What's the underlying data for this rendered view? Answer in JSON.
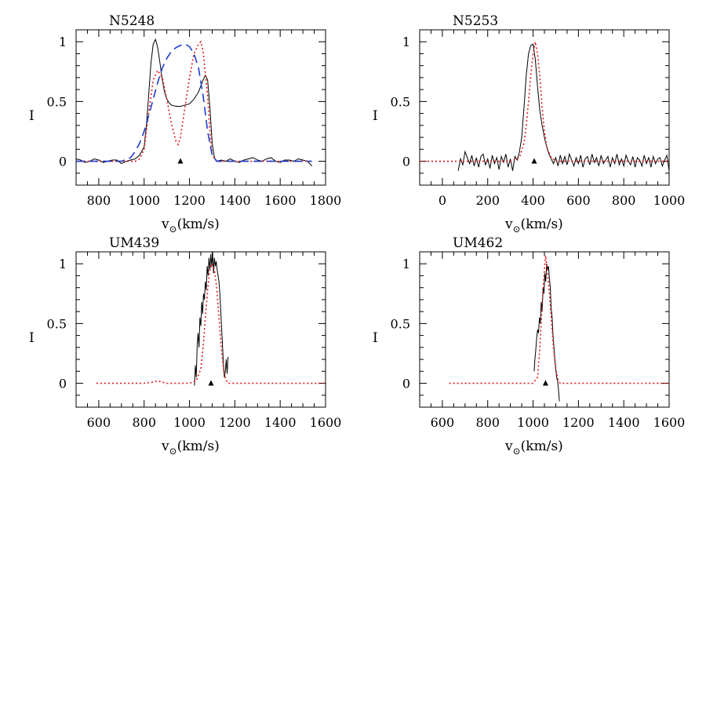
{
  "chart_data": [
    {
      "type": "line",
      "title": "N5248",
      "xlabel": "v",
      "xlabel_sub": "⊙",
      "xlabel_unit": "(km/s)",
      "ylabel": "I",
      "xlim": [
        700,
        1800
      ],
      "ylim": [
        -0.2,
        1.1
      ],
      "xticks": [
        800,
        1000,
        1200,
        1400,
        1600,
        1800
      ],
      "yticks": [
        0,
        0.5,
        1
      ],
      "marker": {
        "x": 1160,
        "y": 0
      },
      "series": [
        {
          "color": "#000000",
          "style": "solid",
          "x": [
            700,
            720,
            740,
            760,
            780,
            800,
            820,
            840,
            860,
            880,
            900,
            920,
            940,
            960,
            980,
            1000,
            1010,
            1020,
            1030,
            1040,
            1050,
            1060,
            1070,
            1080,
            1090,
            1100,
            1110,
            1120,
            1140,
            1160,
            1180,
            1200,
            1220,
            1240,
            1260,
            1270,
            1280,
            1290,
            1300,
            1310,
            1320,
            1340,
            1360,
            1380,
            1400,
            1420,
            1440,
            1460,
            1480,
            1500,
            1520,
            1540,
            1560,
            1580,
            1600,
            1620,
            1640,
            1660,
            1680,
            1700,
            1720,
            1740
          ],
          "y": [
            0.02,
            0.01,
            -0.01,
            0.0,
            0.02,
            0.01,
            -0.01,
            0.0,
            0.01,
            0.01,
            -0.02,
            0.0,
            0.01,
            0.02,
            0.05,
            0.12,
            0.3,
            0.55,
            0.82,
            0.98,
            1.02,
            0.95,
            0.82,
            0.68,
            0.58,
            0.52,
            0.49,
            0.47,
            0.46,
            0.46,
            0.47,
            0.48,
            0.52,
            0.58,
            0.68,
            0.72,
            0.68,
            0.45,
            0.15,
            0.03,
            0.0,
            0.01,
            0.0,
            0.02,
            0.0,
            -0.01,
            0.01,
            0.02,
            0.03,
            0.01,
            0.0,
            0.02,
            0.03,
            0.0,
            -0.01,
            0.01,
            0.01,
            0.0,
            0.02,
            0.01,
            0.0,
            -0.04
          ]
        },
        {
          "color": "#e31a1c",
          "style": "dotted",
          "x": [
            700,
            800,
            900,
            960,
            980,
            1000,
            1020,
            1040,
            1060,
            1080,
            1100,
            1120,
            1140,
            1150,
            1160,
            1180,
            1200,
            1220,
            1240,
            1250,
            1260,
            1280,
            1290,
            1300,
            1320,
            1400,
            1500,
            1600,
            1700,
            1740
          ],
          "y": [
            0,
            0,
            0,
            0,
            0.02,
            0.1,
            0.4,
            0.68,
            0.76,
            0.7,
            0.52,
            0.32,
            0.17,
            0.14,
            0.2,
            0.45,
            0.7,
            0.9,
            0.98,
            1.0,
            0.92,
            0.55,
            0.25,
            0.05,
            0,
            0,
            0,
            0,
            0,
            0
          ]
        },
        {
          "color": "#1f3fd0",
          "style": "dashed",
          "x": [
            700,
            800,
            900,
            940,
            960,
            980,
            1000,
            1020,
            1040,
            1060,
            1080,
            1100,
            1120,
            1140,
            1160,
            1180,
            1200,
            1220,
            1240,
            1260,
            1280,
            1300,
            1320,
            1400,
            1500,
            1600,
            1700,
            1740
          ],
          "y": [
            0,
            0,
            0,
            0.03,
            0.08,
            0.15,
            0.25,
            0.38,
            0.52,
            0.66,
            0.78,
            0.86,
            0.92,
            0.95,
            0.97,
            0.98,
            0.96,
            0.9,
            0.78,
            0.55,
            0.25,
            0.05,
            0,
            0,
            0,
            0,
            0,
            0
          ]
        }
      ]
    },
    {
      "type": "line",
      "title": "N5253",
      "xlabel": "v",
      "xlabel_sub": "⊙",
      "xlabel_unit": "(km/s)",
      "ylabel": "I",
      "xlim": [
        -100,
        1000
      ],
      "ylim": [
        -0.2,
        1.1
      ],
      "xticks": [
        0,
        200,
        400,
        600,
        800,
        1000
      ],
      "yticks": [
        0,
        0.5,
        1
      ],
      "marker": {
        "x": 405,
        "y": 0
      },
      "series": [
        {
          "color": "#000000",
          "style": "solid",
          "x": [
            70,
            80,
            90,
            100,
            110,
            120,
            130,
            140,
            150,
            160,
            170,
            180,
            190,
            200,
            210,
            220,
            230,
            240,
            250,
            260,
            270,
            280,
            290,
            300,
            310,
            320,
            330,
            340,
            350,
            360,
            370,
            380,
            390,
            400,
            410,
            420,
            430,
            440,
            450,
            460,
            470,
            480,
            490,
            500,
            510,
            520,
            530,
            540,
            550,
            560,
            570,
            580,
            590,
            600,
            610,
            620,
            630,
            640,
            650,
            660,
            670,
            680,
            690,
            700,
            710,
            720,
            730,
            740,
            750,
            760,
            770,
            780,
            790,
            800,
            810,
            820,
            830,
            840,
            850,
            860,
            870,
            880,
            890,
            900,
            910,
            920,
            930,
            940,
            950,
            960,
            970,
            980,
            990,
            1000
          ],
          "y": [
            -0.08,
            0.02,
            -0.03,
            0.08,
            0.03,
            -0.02,
            0.05,
            -0.04,
            0.03,
            -0.05,
            0.04,
            0.06,
            -0.03,
            0.02,
            -0.06,
            0.05,
            -0.02,
            0.03,
            -0.07,
            0.04,
            -0.01,
            0.06,
            -0.05,
            0.02,
            -0.08,
            0.04,
            0.01,
            0.08,
            0.2,
            0.45,
            0.72,
            0.9,
            0.97,
            0.98,
            0.85,
            0.62,
            0.42,
            0.3,
            0.2,
            0.12,
            0.06,
            0.02,
            -0.02,
            0.03,
            -0.04,
            0.05,
            -0.02,
            0.04,
            -0.03,
            0.06,
            0.01,
            -0.04,
            0.03,
            -0.02,
            0.05,
            -0.05,
            0.02,
            0.04,
            -0.03,
            0.06,
            -0.01,
            0.03,
            -0.04,
            0.05,
            -0.02,
            0.01,
            0.04,
            -0.05,
            0.03,
            -0.02,
            0.06,
            -0.03,
            0.02,
            -0.04,
            0.05,
            0.0,
            -0.03,
            0.04,
            -0.05,
            0.03,
            0.01,
            -0.04,
            0.05,
            -0.02,
            0.03,
            -0.05,
            0.04,
            -0.02,
            0.02,
            0.03,
            -0.04,
            0.01,
            0.05,
            -0.08
          ]
        },
        {
          "color": "#e31a1c",
          "style": "dotted",
          "x": [
            -100,
            0,
            100,
            200,
            300,
            340,
            360,
            370,
            380,
            390,
            400,
            410,
            420,
            430,
            440,
            450,
            460,
            480,
            500,
            600,
            700,
            800,
            900,
            1000
          ],
          "y": [
            0,
            0,
            0,
            0,
            0,
            0.03,
            0.15,
            0.3,
            0.5,
            0.72,
            0.9,
            1.0,
            0.9,
            0.7,
            0.45,
            0.25,
            0.12,
            0.03,
            0,
            0,
            0,
            0,
            0,
            0
          ]
        }
      ]
    },
    {
      "type": "line",
      "title": "UM439",
      "xlabel": "v",
      "xlabel_sub": "⊙",
      "xlabel_unit": "(km/s)",
      "ylabel": "I",
      "xlim": [
        500,
        1600
      ],
      "ylim": [
        -0.2,
        1.1
      ],
      "xticks": [
        600,
        800,
        1000,
        1200,
        1400,
        1600
      ],
      "yticks": [
        0,
        0.5,
        1
      ],
      "marker": {
        "x": 1095,
        "y": 0
      },
      "series": [
        {
          "color": "#000000",
          "style": "solid",
          "x": [
            1022,
            1026,
            1030,
            1034,
            1038,
            1042,
            1046,
            1050,
            1054,
            1058,
            1062,
            1066,
            1070,
            1074,
            1078,
            1082,
            1086,
            1090,
            1094,
            1098,
            1102,
            1106,
            1110,
            1114,
            1118,
            1122,
            1126,
            1130,
            1134,
            1138,
            1142,
            1146,
            1150,
            1154,
            1158,
            1162,
            1166,
            1170
          ],
          "y": [
            -0.02,
            0.15,
            0.05,
            0.32,
            0.42,
            0.3,
            0.55,
            0.48,
            0.68,
            0.58,
            0.75,
            0.7,
            0.85,
            0.78,
            0.98,
            0.9,
            1.05,
            0.95,
            1.08,
            0.98,
            1.1,
            0.92,
            1.05,
            0.98,
            1.02,
            0.95,
            0.9,
            0.85,
            0.75,
            0.6,
            0.45,
            0.3,
            0.15,
            0.05,
            0.1,
            0.2,
            0.08,
            0.22
          ]
        },
        {
          "color": "#e31a1c",
          "style": "dotted",
          "x": [
            590,
            700,
            800,
            840,
            860,
            880,
            900,
            1000,
            1030,
            1050,
            1060,
            1070,
            1080,
            1090,
            1100,
            1110,
            1120,
            1130,
            1140,
            1150,
            1160,
            1170,
            1200,
            1300,
            1400,
            1500,
            1600
          ],
          "y": [
            0,
            0,
            0,
            0.01,
            0.02,
            0.01,
            0,
            0,
            0.02,
            0.12,
            0.3,
            0.55,
            0.78,
            0.95,
            1.0,
            0.95,
            0.8,
            0.55,
            0.3,
            0.12,
            0.03,
            0,
            0,
            0,
            0,
            0,
            0
          ]
        }
      ]
    },
    {
      "type": "line",
      "title": "UM462",
      "xlabel": "v",
      "xlabel_sub": "⊙",
      "xlabel_unit": "(km/s)",
      "ylabel": "I",
      "xlim": [
        500,
        1600
      ],
      "ylim": [
        -0.2,
        1.1
      ],
      "xticks": [
        600,
        800,
        1000,
        1200,
        1400,
        1600
      ],
      "yticks": [
        0,
        0.5,
        1
      ],
      "marker": {
        "x": 1055,
        "y": 0
      },
      "series": [
        {
          "color": "#000000",
          "style": "solid",
          "x": [
            1005,
            1008,
            1012,
            1016,
            1020,
            1024,
            1028,
            1032,
            1036,
            1040,
            1044,
            1048,
            1052,
            1056,
            1060,
            1064,
            1068,
            1072,
            1076,
            1080,
            1084,
            1088,
            1092,
            1096,
            1100,
            1104,
            1108,
            1112,
            1116
          ],
          "y": [
            0.1,
            0.2,
            0.28,
            0.38,
            0.45,
            0.42,
            0.55,
            0.5,
            0.68,
            0.6,
            0.8,
            0.75,
            0.92,
            0.85,
            1.0,
            0.95,
            0.98,
            0.88,
            0.8,
            0.62,
            0.55,
            0.4,
            0.3,
            0.2,
            0.12,
            0.05,
            0.02,
            -0.05,
            -0.15
          ]
        },
        {
          "color": "#e31a1c",
          "style": "dotted",
          "x": [
            630,
            700,
            800,
            900,
            1000,
            1020,
            1030,
            1040,
            1050,
            1055,
            1060,
            1070,
            1080,
            1090,
            1100,
            1110,
            1120,
            1130,
            1200,
            1300,
            1400,
            1500,
            1600
          ],
          "y": [
            0,
            0,
            0,
            0,
            0,
            0.05,
            0.3,
            0.65,
            0.95,
            1.07,
            1.0,
            0.8,
            0.55,
            0.3,
            0.12,
            0.03,
            0,
            0,
            0,
            0,
            0,
            0,
            0
          ]
        }
      ]
    }
  ]
}
